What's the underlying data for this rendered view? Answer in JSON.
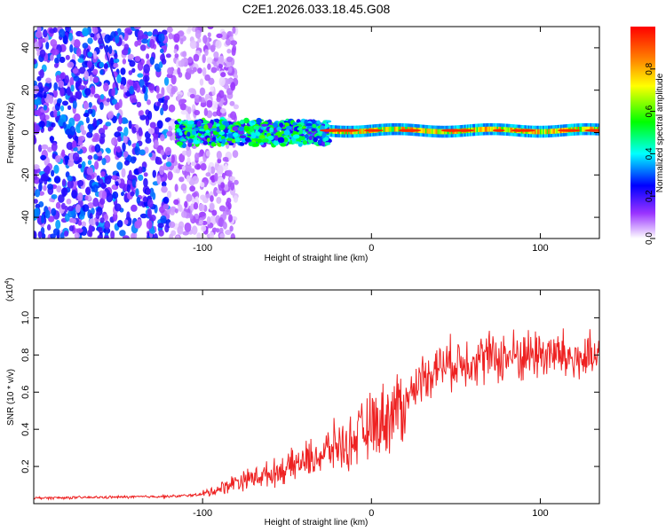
{
  "figure_title": "C2E1.2026.033.18.45.G08",
  "chart_data": [
    {
      "type": "heatmap",
      "title": "C2E1.2026.033.18.45.G08",
      "xlabel": "Height of straight line (km)",
      "ylabel": "Frequency (Hz)",
      "xlim": [
        -200,
        135
      ],
      "ylim": [
        -50,
        50
      ],
      "xticks": [
        -100,
        0,
        100
      ],
      "yticks": [
        -40,
        -20,
        0,
        20,
        40
      ],
      "colorbar": {
        "label": "Normalized spectral amplitude",
        "range": [
          0,
          1
        ],
        "ticks": [
          0.0,
          0.2,
          0.4,
          0.6,
          0.8
        ],
        "colormap": [
          "#ffffff",
          "#7f00ff",
          "#0000ff",
          "#00ffff",
          "#00ff00",
          "#ffff00",
          "#ff0000"
        ]
      },
      "description_bands": [
        {
          "x_range": [
            -200,
            -100
          ],
          "freq_range": [
            -50,
            50
          ],
          "level": 0.25
        },
        {
          "x_range": [
            -115,
            -25
          ],
          "freq_center": 0,
          "freq_halfwidth": 4,
          "level": 0.5
        },
        {
          "x_range": [
            -25,
            135
          ],
          "freq_center": 1,
          "freq_halfwidth": 2,
          "level": 0.85
        }
      ]
    },
    {
      "type": "line",
      "xlabel": "Height of straight line (km)",
      "ylabel": "SNR (10 * v/v)",
      "y_scale_label": "(x10",
      "y_scale_exp": "4",
      "xlim": [
        -200,
        135
      ],
      "ylim": [
        0,
        1.15
      ],
      "xticks": [
        -100,
        0,
        100
      ],
      "yticks": [
        0.2,
        0.4,
        0.6,
        0.8,
        1.0
      ],
      "series": [
        {
          "name": "SNR",
          "color": "#ee2222",
          "x": [
            -200,
            -150,
            -115,
            -100,
            -90,
            -80,
            -70,
            -60,
            -50,
            -40,
            -30,
            -20,
            -15,
            -10,
            0,
            10,
            20,
            30,
            40,
            60,
            80,
            100,
            110,
            120,
            135
          ],
          "y": [
            0.03,
            0.035,
            0.04,
            0.05,
            0.08,
            0.12,
            0.14,
            0.16,
            0.19,
            0.23,
            0.26,
            0.32,
            0.3,
            0.35,
            0.42,
            0.47,
            0.55,
            0.68,
            0.74,
            0.78,
            0.79,
            0.81,
            0.8,
            0.78,
            0.77
          ]
        }
      ]
    }
  ]
}
